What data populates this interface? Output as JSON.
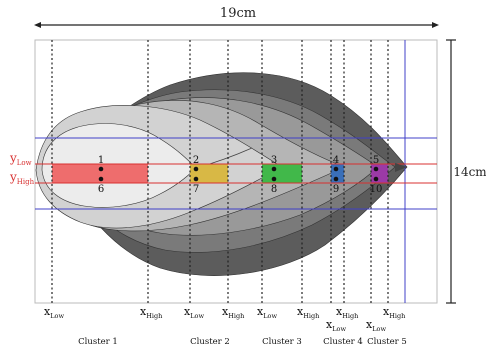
{
  "dimensions": {
    "width_label": "19cm",
    "height_label": "14cm"
  },
  "y_labels": [
    {
      "main": "y",
      "sub": "Low"
    },
    {
      "main": "y",
      "sub": "High"
    }
  ],
  "x_labels": [
    {
      "main": "x",
      "sub": "Low"
    },
    {
      "main": "x",
      "sub": "High"
    },
    {
      "main": "x",
      "sub": "Low"
    },
    {
      "main": "x",
      "sub": "High"
    },
    {
      "main": "x",
      "sub": "Low"
    },
    {
      "main": "x",
      "sub": "High"
    },
    {
      "main": "x",
      "sub": "High"
    },
    {
      "main": "x",
      "sub": "Low"
    },
    {
      "main": "x",
      "sub": "Low"
    },
    {
      "main": "x",
      "sub": "High"
    }
  ],
  "clusters": [
    {
      "label": "Cluster 1",
      "color": "#ee6d6d",
      "top_point": "1",
      "bottom_point": "6"
    },
    {
      "label": "Cluster 2",
      "color": "#d8b845",
      "top_point": "2",
      "bottom_point": "7"
    },
    {
      "label": "Cluster 3",
      "color": "#41b84a",
      "top_point": "3",
      "bottom_point": "8"
    },
    {
      "label": "Cluster 4",
      "color": "#3a6fb8",
      "top_point": "4",
      "bottom_point": "9"
    },
    {
      "label": "Cluster 5",
      "color": "#9b3aa6",
      "top_point": "5",
      "bottom_point": "10"
    }
  ],
  "colors": {
    "y_line": "#d83030",
    "grid_line": "#4040c8",
    "dotted_line": "#222222",
    "layer_1": "#5c5c5c",
    "layer_2": "#7a7a7a",
    "layer_3": "#999999",
    "layer_4": "#b5b5b5",
    "layer_5": "#d2d2d2",
    "layer_6": "#ececec"
  }
}
